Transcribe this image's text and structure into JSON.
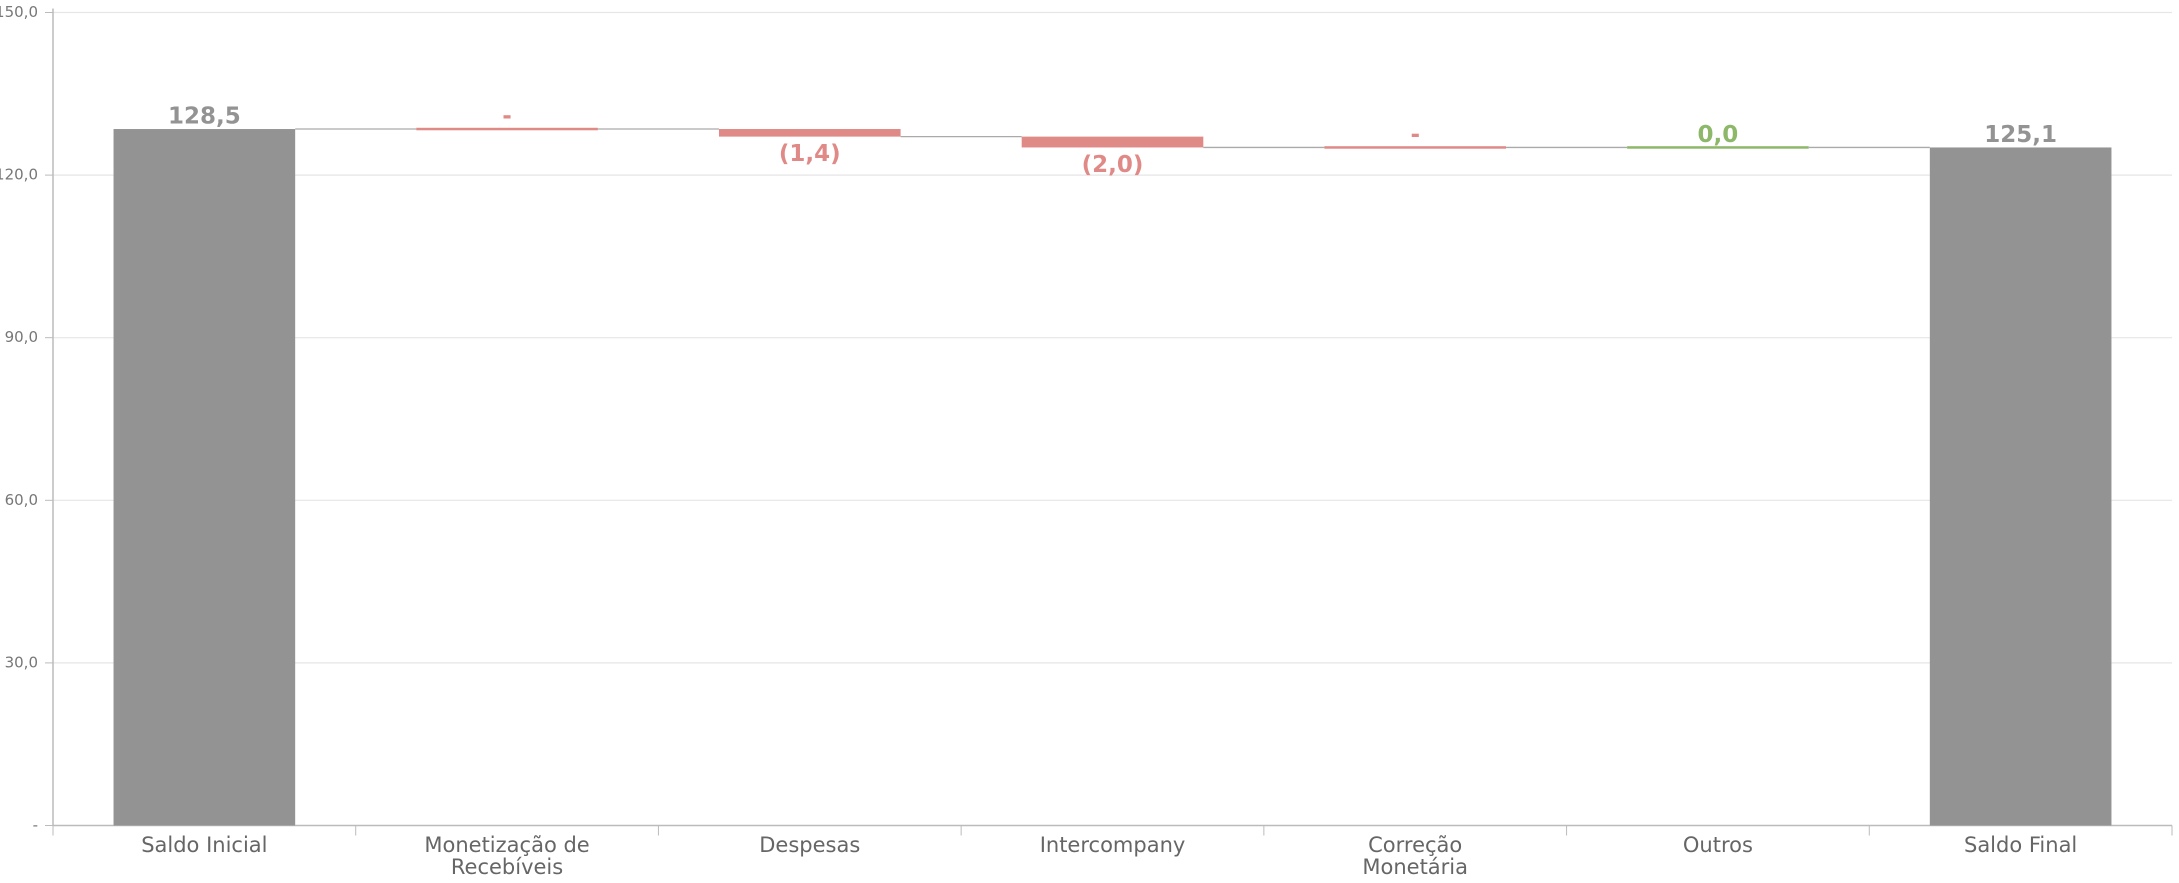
{
  "chart_data": {
    "type": "waterfall",
    "categories": [
      "Saldo Inicial",
      "Monetização de Recebíveis",
      "Despesas",
      "Intercompany",
      "Correção Monetária",
      "Outros",
      "Saldo Final"
    ],
    "values": [
      128.5,
      0,
      -1.4,
      -2.0,
      0,
      0.0,
      125.1
    ],
    "value_labels": [
      "128,5",
      "-",
      "(1,4)",
      "(2,0)",
      "-",
      "0,0",
      "125,1"
    ],
    "totals": [
      true,
      false,
      false,
      false,
      false,
      false,
      true
    ],
    "colors": [
      "#939393",
      "#e08a87",
      "#e08a87",
      "#e08a87",
      "#e08a87",
      "#8db86a",
      "#939393"
    ],
    "ylim": [
      0,
      150
    ],
    "yticks": [
      {
        "value": 0,
        "label": "-"
      },
      {
        "value": 30,
        "label": "30,0"
      },
      {
        "value": 60,
        "label": "60,0"
      },
      {
        "value": 90,
        "label": "90,0"
      },
      {
        "value": 120,
        "label": "120,0"
      },
      {
        "value": 150,
        "label": "150,0"
      }
    ],
    "grid": true
  }
}
